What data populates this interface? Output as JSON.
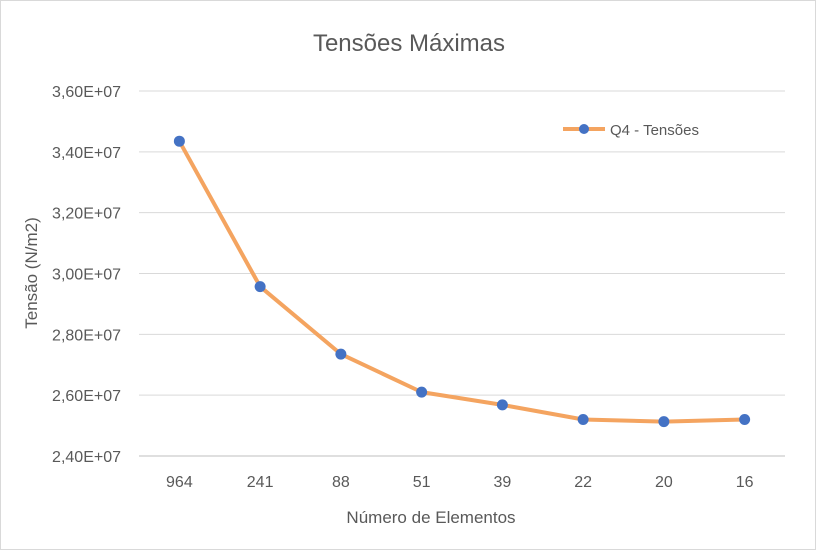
{
  "chart_data": {
    "type": "line",
    "title": "Tensões Máximas",
    "xlabel": "Número de Elementos",
    "ylabel": "Tensão (N/m2)",
    "categories": [
      "964",
      "241",
      "88",
      "51",
      "39",
      "22",
      "20",
      "16"
    ],
    "series": [
      {
        "name": "Q4 - Tensões",
        "values": [
          34350000,
          29570000,
          27350000,
          26100000,
          25680000,
          25200000,
          25130000,
          25200000
        ]
      }
    ],
    "ylim": [
      24000000,
      36000000
    ],
    "yticks": [
      24000000,
      26000000,
      28000000,
      30000000,
      32000000,
      34000000,
      36000000
    ],
    "ytick_labels": [
      "2,40E+07",
      "2,60E+07",
      "2,80E+07",
      "3,00E+07",
      "3,20E+07",
      "3,40E+07",
      "3,60E+07"
    ],
    "grid": true,
    "legend_position": "top-right",
    "colors": {
      "line": "#F4A460",
      "marker": "#4472C4",
      "grid": "#d9d9d9",
      "axis": "#bfbfbf",
      "text": "#595959"
    }
  }
}
